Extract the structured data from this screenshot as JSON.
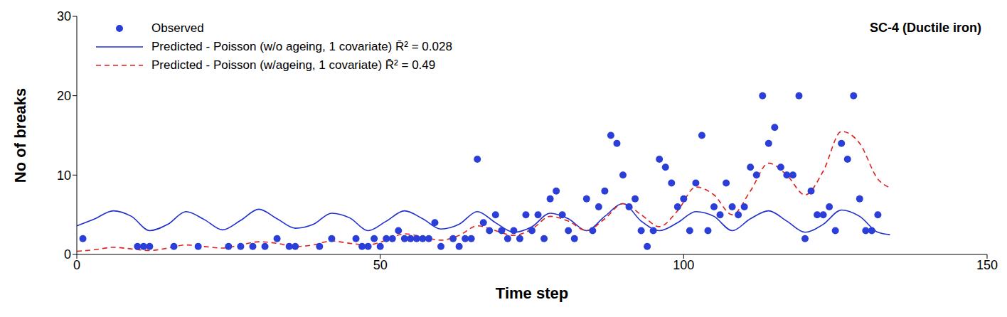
{
  "chart_data": {
    "type": "line",
    "title": "SC-4 (Ductile iron)",
    "x_label": "Time step",
    "y_label": "No of breaks",
    "xlim": [
      0,
      150
    ],
    "xticks": [
      0,
      50,
      100,
      150
    ],
    "ylim": [
      0,
      30
    ],
    "yticks": [
      0,
      10,
      20,
      30
    ],
    "grid": false,
    "legend": "top-left",
    "series": [
      {
        "name": "Observed",
        "type": "scatter",
        "marker": "circle",
        "color": "#2b3fd8",
        "x": [
          1,
          10,
          11,
          12,
          16,
          20,
          25,
          27,
          29,
          31,
          33,
          35,
          36,
          40,
          42,
          46,
          47,
          48,
          49,
          50,
          51,
          52,
          53,
          54,
          55,
          56,
          57,
          58,
          59,
          60,
          62,
          63,
          64,
          65,
          66,
          67,
          68,
          69,
          70,
          71,
          72,
          73,
          74,
          75,
          76,
          77,
          78,
          79,
          80,
          81,
          82,
          84,
          85,
          86,
          87,
          88,
          89,
          90,
          91,
          92,
          93,
          94,
          95,
          96,
          97,
          98,
          99,
          100,
          101,
          102,
          103,
          104,
          105,
          106,
          107,
          108,
          109,
          110,
          111,
          112,
          113,
          114,
          115,
          116,
          117,
          118,
          119,
          120,
          121,
          122,
          123,
          124,
          125,
          126,
          127,
          128,
          129,
          130,
          131,
          132
        ],
        "values": [
          2,
          1,
          1,
          1,
          1,
          1,
          1,
          1,
          1,
          1,
          2,
          1,
          1,
          1,
          2,
          2,
          1,
          1,
          2,
          1,
          2,
          2,
          3,
          2,
          2,
          2,
          2,
          2,
          4,
          1,
          2,
          1,
          2,
          2,
          12,
          4,
          3,
          5,
          3,
          2,
          3,
          2,
          5,
          3,
          5,
          2,
          7,
          8,
          5,
          3,
          2,
          7,
          3,
          6,
          8,
          15,
          14,
          10,
          6,
          7,
          3,
          1,
          3,
          12,
          11,
          9,
          6,
          7,
          3,
          9,
          15,
          3,
          6,
          5,
          9,
          6,
          5,
          6,
          11,
          10,
          20,
          14,
          16,
          11,
          10,
          10,
          20,
          2,
          8,
          5,
          5,
          6,
          3,
          14,
          12,
          20,
          7,
          3,
          3,
          5
        ]
      },
      {
        "name": "Predicted - Poisson (w/o ageing, 1 covariate)  R̄² = 0.028",
        "type": "line",
        "line_style": "solid",
        "color": "#1f2fd0",
        "x": [
          0,
          3,
          6,
          9,
          12,
          15,
          18,
          21,
          24,
          27,
          30,
          33,
          36,
          39,
          42,
          45,
          48,
          51,
          54,
          57,
          60,
          63,
          66,
          69,
          72,
          75,
          78,
          81,
          84,
          87,
          90,
          93,
          96,
          99,
          102,
          105,
          108,
          111,
          114,
          117,
          120,
          123,
          126,
          129,
          132,
          134
        ],
        "values": [
          3.6,
          4.5,
          5.5,
          4.8,
          3.0,
          3.8,
          5.4,
          4.4,
          3.1,
          4.3,
          5.7,
          4.5,
          3.3,
          3.8,
          5.2,
          4.6,
          3.0,
          4.2,
          5.5,
          4.5,
          3.2,
          3.8,
          5.4,
          4.0,
          2.8,
          3.5,
          5.2,
          4.5,
          3.0,
          4.8,
          6.4,
          4.2,
          3.0,
          4.0,
          5.4,
          4.8,
          3.0,
          4.5,
          5.5,
          4.2,
          2.8,
          3.8,
          5.6,
          4.8,
          2.8,
          2.5
        ]
      },
      {
        "name": "Predicted - Poisson (w/ageing, 1 covariate)  R̄² = 0.49",
        "type": "line",
        "line_style": "dashed",
        "color": "#e0201b",
        "x": [
          0,
          3,
          6,
          9,
          12,
          15,
          18,
          21,
          24,
          27,
          30,
          33,
          36,
          39,
          42,
          45,
          48,
          51,
          54,
          57,
          60,
          63,
          66,
          69,
          72,
          75,
          78,
          81,
          84,
          87,
          90,
          93,
          96,
          99,
          102,
          105,
          108,
          111,
          114,
          117,
          120,
          123,
          126,
          129,
          132,
          134
        ],
        "values": [
          0.4,
          0.6,
          0.9,
          0.7,
          0.5,
          0.8,
          1.2,
          1.0,
          0.8,
          1.2,
          1.6,
          1.4,
          1.0,
          1.2,
          1.7,
          1.4,
          1.2,
          1.8,
          2.6,
          2.2,
          1.8,
          2.4,
          3.6,
          3.0,
          2.4,
          3.2,
          4.8,
          4.2,
          3.0,
          4.5,
          6.4,
          5.0,
          3.5,
          5.5,
          8.5,
          7.5,
          5.0,
          8.0,
          11.5,
          10.0,
          7.5,
          10.5,
          15.5,
          14.0,
          9.5,
          8.4
        ]
      }
    ]
  }
}
